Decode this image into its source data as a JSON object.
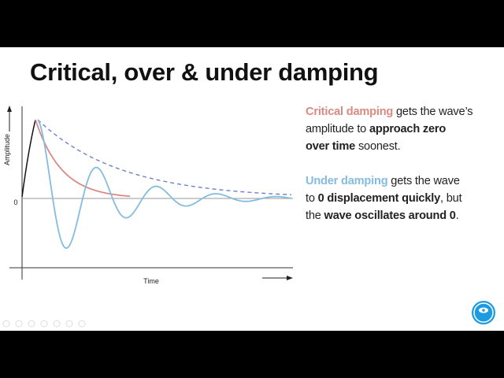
{
  "title": "Critical, over & under damping",
  "chart": {
    "y_label": "Amplitude",
    "zero_label": "0",
    "x_label": "Time"
  },
  "text_block": {
    "paragraphs": [
      [
        [
          "Critical damping",
          " gets the wave’s"
        ],
        [
          "amplitude to ",
          "approach zero"
        ],
        [
          "over time",
          " soonest."
        ]
      ],
      [
        [
          "Under damping",
          " gets the wave"
        ],
        [
          "to ",
          "0 displacement quickly",
          ", but"
        ],
        [
          "the ",
          "wave oscillates around 0",
          "."
        ]
      ]
    ]
  }
}
